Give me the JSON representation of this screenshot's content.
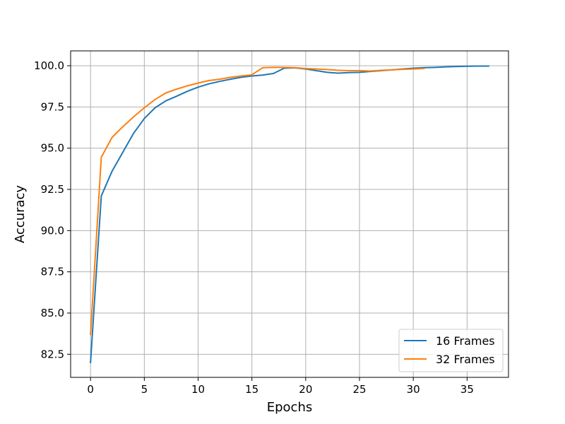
{
  "chart_data": {
    "type": "line",
    "title": "",
    "xlabel": "Epochs",
    "ylabel": "Accuracy",
    "xlim": [
      -1.85,
      38.85
    ],
    "ylim": [
      81.1,
      100.9
    ],
    "xticks": [
      0,
      5,
      10,
      15,
      20,
      25,
      30,
      35
    ],
    "xtick_labels": [
      "0",
      "5",
      "10",
      "15",
      "20",
      "25",
      "30",
      "35"
    ],
    "yticks": [
      82.5,
      85.0,
      87.5,
      90.0,
      92.5,
      95.0,
      97.5,
      100.0
    ],
    "ytick_labels": [
      "82.5",
      "85.0",
      "87.5",
      "90.0",
      "92.5",
      "95.0",
      "97.5",
      "100.0"
    ],
    "grid": true,
    "legend_position": "bottom-right",
    "series": [
      {
        "name": "16 Frames",
        "color": "#1f77b4",
        "x": [
          0,
          1,
          2,
          3,
          4,
          5,
          6,
          7,
          8,
          9,
          10,
          11,
          12,
          13,
          14,
          15,
          16,
          17,
          18,
          19,
          20,
          21,
          22,
          23,
          24,
          25,
          26,
          27,
          28,
          29,
          30,
          31,
          32,
          33,
          34,
          35,
          36,
          37
        ],
        "y": [
          82.0,
          92.1,
          93.6,
          94.75,
          95.9,
          96.8,
          97.45,
          97.87,
          98.15,
          98.45,
          98.7,
          98.9,
          99.05,
          99.18,
          99.3,
          99.38,
          99.43,
          99.53,
          99.85,
          99.87,
          99.8,
          99.7,
          99.6,
          99.55,
          99.58,
          99.6,
          99.65,
          99.7,
          99.75,
          99.8,
          99.85,
          99.88,
          99.9,
          99.93,
          99.95,
          99.97,
          99.98,
          99.98
        ]
      },
      {
        "name": "32 Frames",
        "color": "#ff7f0e",
        "x": [
          0,
          1,
          2,
          3,
          4,
          5,
          6,
          7,
          8,
          9,
          10,
          11,
          12,
          13,
          14,
          15,
          16,
          17,
          18,
          19,
          20,
          21,
          22,
          23,
          24,
          25,
          26,
          27,
          28,
          29,
          30,
          31
        ],
        "y": [
          83.7,
          94.45,
          95.65,
          96.3,
          96.9,
          97.45,
          97.95,
          98.35,
          98.58,
          98.78,
          98.95,
          99.1,
          99.18,
          99.3,
          99.38,
          99.45,
          99.88,
          99.9,
          99.9,
          99.88,
          99.83,
          99.8,
          99.77,
          99.72,
          99.7,
          99.7,
          99.68,
          99.72,
          99.75,
          99.78,
          99.8,
          99.83
        ]
      }
    ]
  }
}
